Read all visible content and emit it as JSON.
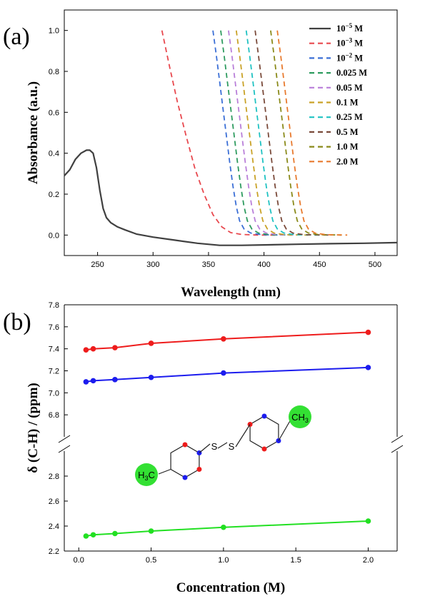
{
  "figure": {
    "panel_a_label": "(a)",
    "panel_b_label": "(b)"
  },
  "chart_data": [
    {
      "type": "line",
      "panel": "(a)",
      "xlabel": "Wavelength (nm)",
      "ylabel": "Absorbance (a.u.)",
      "xlim": [
        220,
        520
      ],
      "ylim": [
        -0.1,
        1.1
      ],
      "xticks": [
        250,
        300,
        350,
        400,
        450,
        500
      ],
      "yticks": [
        0.0,
        0.2,
        0.4,
        0.6,
        0.8,
        1.0
      ],
      "xtick_labels": [
        "250",
        "300",
        "350",
        "400",
        "450",
        "500"
      ],
      "ytick_labels": [
        "0.0",
        "0.2",
        "0.4",
        "0.6",
        "0.8",
        "1.0"
      ],
      "legend_position": "top-right",
      "series": [
        {
          "name": "10⁻⁵ M",
          "name_base": "10",
          "name_sup": "−5",
          "name_unit": " M",
          "color": "#404040",
          "dashed": false,
          "x": [
            220,
            225,
            230,
            235,
            240,
            243,
            246,
            249,
            252,
            255,
            258,
            262,
            268,
            275,
            285,
            300,
            320,
            340,
            360,
            380,
            400,
            430,
            460,
            490,
            520
          ],
          "y": [
            0.29,
            0.32,
            0.37,
            0.4,
            0.415,
            0.415,
            0.4,
            0.33,
            0.22,
            0.13,
            0.085,
            0.06,
            0.04,
            0.025,
            0.005,
            -0.01,
            -0.025,
            -0.04,
            -0.05,
            -0.05,
            -0.048,
            -0.045,
            -0.042,
            -0.04,
            -0.037
          ]
        },
        {
          "name": "10⁻³ M",
          "name_base": "10",
          "name_sup": "−3",
          "name_unit": " M",
          "color": "#e8484e",
          "dashed": true,
          "x": [
            308,
            315,
            322,
            330,
            338,
            346,
            354,
            362,
            370,
            380,
            395,
            410
          ],
          "y": [
            1.0,
            0.82,
            0.65,
            0.48,
            0.32,
            0.2,
            0.1,
            0.04,
            0.012,
            0.003,
            0.0,
            0.0
          ]
        },
        {
          "name": "10⁻² M",
          "name_base": "10",
          "name_sup": "−2",
          "name_unit": " M",
          "color": "#3b6fd6",
          "dashed": true,
          "x": [
            354,
            357,
            360,
            363,
            366,
            369,
            372,
            375,
            378,
            382,
            388,
            398,
            415
          ],
          "y": [
            1.0,
            0.88,
            0.75,
            0.62,
            0.49,
            0.36,
            0.24,
            0.14,
            0.07,
            0.03,
            0.01,
            0.002,
            0.0
          ]
        },
        {
          "name": "0.025 M",
          "name_base": "0.025 M",
          "color": "#2e9b5f",
          "dashed": true,
          "x": [
            361,
            364,
            367,
            370,
            373,
            376,
            379,
            382,
            385,
            389,
            395,
            405,
            425
          ],
          "y": [
            1.0,
            0.88,
            0.75,
            0.62,
            0.49,
            0.36,
            0.24,
            0.14,
            0.07,
            0.03,
            0.01,
            0.002,
            0.0
          ]
        },
        {
          "name": "0.05 M",
          "name_base": "0.05 M",
          "color": "#b97fd9",
          "dashed": true,
          "x": [
            368,
            371,
            374,
            377,
            380,
            383,
            386,
            389,
            392,
            396,
            402,
            412,
            430
          ],
          "y": [
            1.0,
            0.88,
            0.75,
            0.62,
            0.49,
            0.36,
            0.24,
            0.14,
            0.07,
            0.03,
            0.01,
            0.002,
            0.0
          ]
        },
        {
          "name": "0.1 M",
          "name_base": "0.1 M",
          "color": "#c9a227",
          "dashed": true,
          "x": [
            375,
            378,
            381,
            384,
            387,
            390,
            393,
            396,
            399,
            403,
            409,
            419,
            440
          ],
          "y": [
            1.0,
            0.88,
            0.75,
            0.62,
            0.49,
            0.36,
            0.24,
            0.14,
            0.07,
            0.03,
            0.01,
            0.002,
            0.0
          ]
        },
        {
          "name": "0.25 M",
          "name_base": "0.25 M",
          "color": "#1fc2c2",
          "dashed": true,
          "x": [
            384,
            387,
            390,
            393,
            396,
            399,
            402,
            405,
            408,
            412,
            418,
            428,
            450
          ],
          "y": [
            1.0,
            0.88,
            0.75,
            0.62,
            0.49,
            0.36,
            0.24,
            0.14,
            0.07,
            0.03,
            0.01,
            0.002,
            0.0
          ]
        },
        {
          "name": "0.5 M",
          "name_base": "0.5 M",
          "color": "#7a4a3a",
          "dashed": true,
          "x": [
            392,
            395,
            398,
            401,
            404,
            407,
            410,
            413,
            416,
            420,
            426,
            436,
            460
          ],
          "y": [
            1.0,
            0.88,
            0.75,
            0.62,
            0.49,
            0.36,
            0.24,
            0.14,
            0.07,
            0.03,
            0.01,
            0.002,
            0.0
          ]
        },
        {
          "name": "1.0 M",
          "name_base": "1.0 M",
          "color": "#8a8a1a",
          "dashed": true,
          "x": [
            406,
            409,
            412,
            415,
            418,
            421,
            424,
            427,
            430,
            434,
            440,
            450,
            470
          ],
          "y": [
            1.0,
            0.88,
            0.75,
            0.62,
            0.49,
            0.36,
            0.24,
            0.14,
            0.07,
            0.03,
            0.01,
            0.002,
            0.0
          ]
        },
        {
          "name": "2.0 M",
          "name_base": "2.0 M",
          "color": "#e87a2e",
          "dashed": true,
          "x": [
            412,
            415,
            418,
            421,
            424,
            427,
            430,
            433,
            436,
            440,
            446,
            456,
            475
          ],
          "y": [
            1.0,
            0.88,
            0.75,
            0.62,
            0.49,
            0.36,
            0.24,
            0.14,
            0.07,
            0.03,
            0.01,
            0.002,
            0.0
          ]
        }
      ]
    },
    {
      "type": "line",
      "panel": "(b)",
      "xlabel": "Concentration (M)",
      "ylabel": "δ (C-H) / (ppm)",
      "xlim": [
        -0.1,
        2.2
      ],
      "ylim_upper": [
        6.6,
        7.8
      ],
      "ylim_lower": [
        2.2,
        3.0
      ],
      "axis_break": true,
      "xticks": [
        0.0,
        0.5,
        1.0,
        1.5,
        2.0
      ],
      "xtick_labels": [
        "0.0",
        "0.5",
        "1.0",
        "1.5",
        "2.0"
      ],
      "yticks_upper": [
        6.8,
        7.0,
        7.2,
        7.4,
        7.6,
        7.8
      ],
      "ytick_labels_upper": [
        "6.8",
        "7.0",
        "7.2",
        "7.4",
        "7.6",
        "7.8"
      ],
      "yticks_lower": [
        2.2,
        2.4,
        2.6,
        2.8
      ],
      "ytick_labels_lower": [
        "2.2",
        "2.4",
        "2.6",
        "2.8"
      ],
      "x": [
        0.05,
        0.1,
        0.25,
        0.5,
        1.0,
        2.0
      ],
      "series": [
        {
          "color": "#ee1c1c",
          "segment": "upper",
          "values": [
            7.39,
            7.4,
            7.41,
            7.45,
            7.49,
            7.55
          ]
        },
        {
          "color": "#1c1cee",
          "segment": "upper",
          "values": [
            7.1,
            7.11,
            7.12,
            7.14,
            7.18,
            7.23
          ]
        },
        {
          "color": "#22e022",
          "segment": "lower",
          "values": [
            2.32,
            2.33,
            2.34,
            2.36,
            2.39,
            2.44
          ]
        }
      ],
      "inset": {
        "ch3_label_base": "CH",
        "ch3_label_sub": "3",
        "h3c_label_pre": "H",
        "h3c_label_sub": "3",
        "h3c_label_post": "C",
        "sulfur_label": "S",
        "highlight_color": "#33e033",
        "red_dot_color": "#ee1c1c",
        "blue_dot_color": "#1c1cee"
      }
    }
  ]
}
